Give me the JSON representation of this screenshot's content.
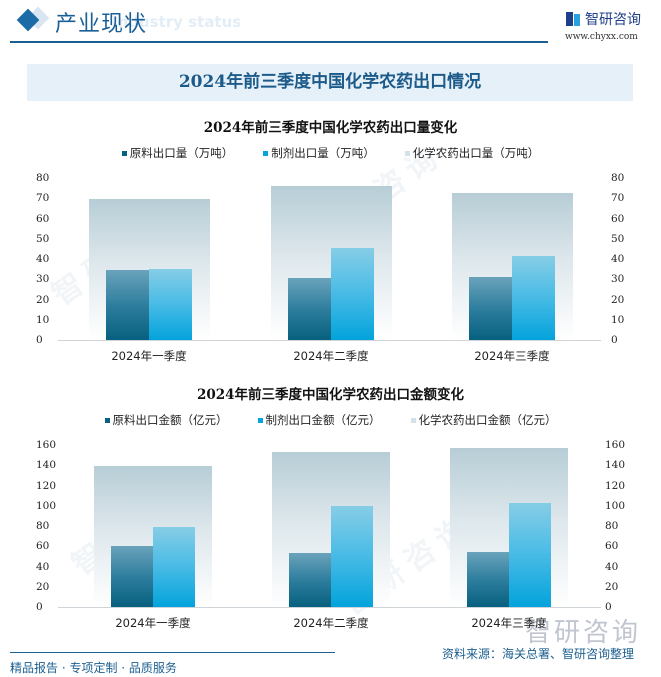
{
  "header": {
    "title": "产业现状",
    "subtitle_watermark": "Industry status",
    "logo_text": "智研咨询",
    "logo_url": "www.chyxx.com"
  },
  "banner": {
    "title": "2024年前三季度中国化学农药出口情况"
  },
  "colors": {
    "raw": "#07607f",
    "formulation": "#03a3dc",
    "total": "#d4e1e8",
    "accent": "#1c5f91"
  },
  "chart_data": [
    {
      "type": "bar",
      "title": "2024年前三季度中国化学农药出口量变化",
      "categories": [
        "2024年一季度",
        "2024年二季度",
        "2024年三季度"
      ],
      "series": [
        {
          "name": "原料出口量（万吨）",
          "values": [
            34.5,
            30.5,
            31.0
          ]
        },
        {
          "name": "制剂出口量（万吨）",
          "values": [
            35.0,
            45.5,
            41.5
          ]
        },
        {
          "name": "化学农药出口量（万吨）",
          "values": [
            69.5,
            76.0,
            72.5
          ]
        }
      ],
      "yticks": [
        "0",
        "10",
        "20",
        "30",
        "40",
        "50",
        "60",
        "70",
        "80"
      ],
      "ylim": [
        0,
        80
      ],
      "xlabel": "",
      "ylabel": "",
      "grid": false,
      "legend_position": "top",
      "dual_axis": true
    },
    {
      "type": "bar",
      "title": "2024年前三季度中国化学农药出口金额变化",
      "categories": [
        "2024年一季度",
        "2024年二季度",
        "2024年三季度"
      ],
      "series": [
        {
          "name": "原料出口金额（亿元）",
          "values": [
            60,
            53,
            54
          ]
        },
        {
          "name": "制剂出口金额（亿元）",
          "values": [
            79,
            100,
            103
          ]
        },
        {
          "name": "化学农药出口金额（亿元）",
          "values": [
            139,
            153,
            157
          ]
        }
      ],
      "yticks": [
        "0",
        "20",
        "40",
        "60",
        "80",
        "100",
        "120",
        "140",
        "160"
      ],
      "ylim": [
        0,
        160
      ],
      "xlabel": "",
      "ylabel": "",
      "grid": false,
      "legend_position": "top",
      "dual_axis": true
    }
  ],
  "footer": {
    "slogan": "精品报告 · 专项定制 · 品质服务",
    "source": "资料来源：海关总署、智研咨询整理",
    "watermark_logo": "智研咨询"
  }
}
